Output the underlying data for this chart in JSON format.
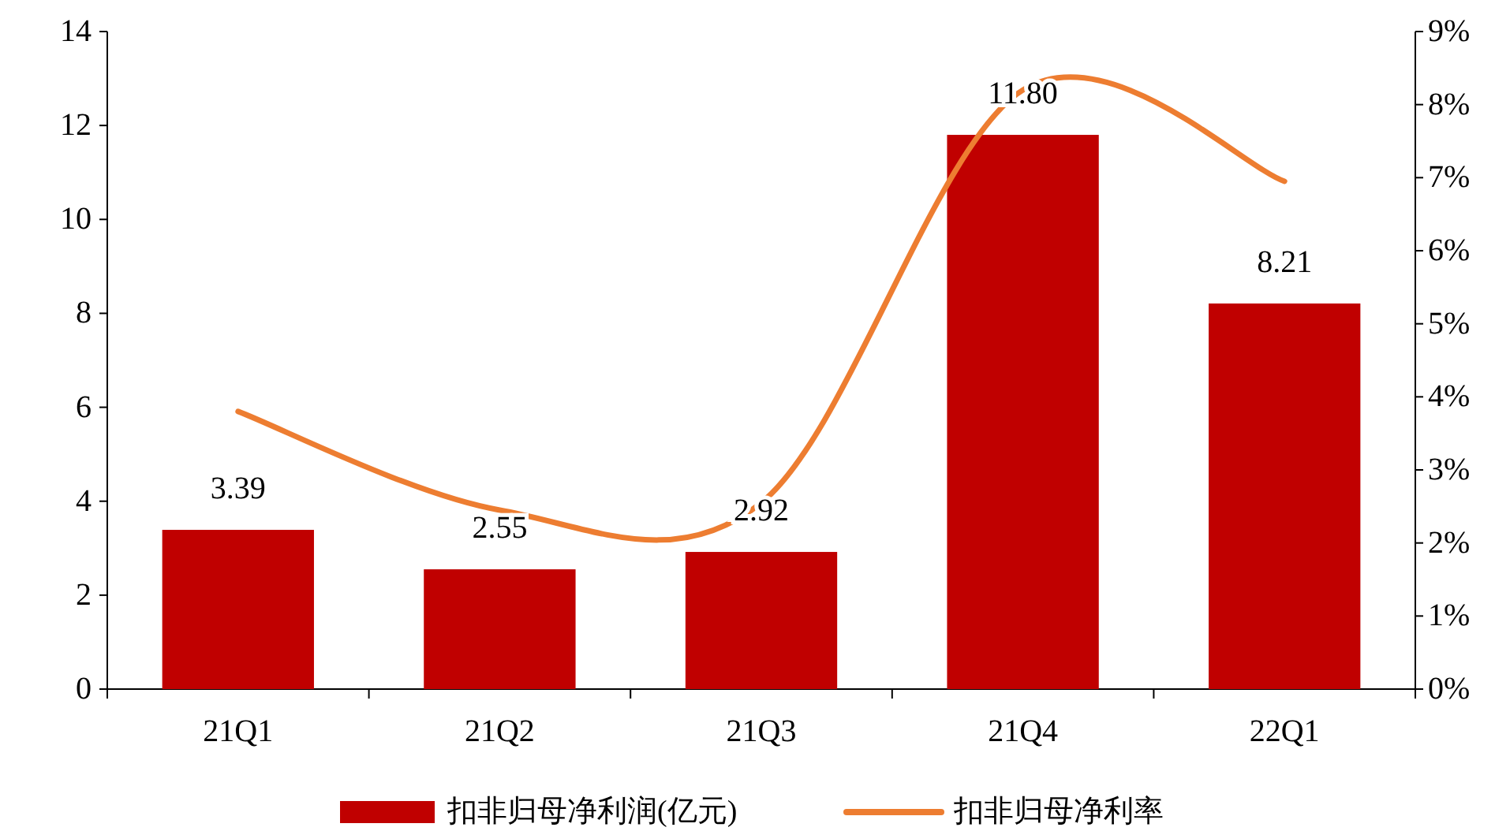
{
  "chart_data": {
    "type": "bar",
    "categories": [
      "21Q1",
      "21Q2",
      "21Q3",
      "21Q4",
      "22Q1"
    ],
    "series": [
      {
        "name": "扣非归母净利润(亿元)",
        "color": "#c00000",
        "values": [
          3.39,
          2.55,
          2.92,
          11.8,
          8.21
        ],
        "value_labels": [
          "3.39",
          "2.55",
          "2.92",
          "11.80",
          "8.21"
        ]
      },
      {
        "name": "扣非归母净利率",
        "type": "line",
        "axis": "y2",
        "color": "#ed7d31",
        "values": [
          3.8,
          2.45,
          2.55,
          8.2,
          6.95
        ]
      }
    ],
    "ylim": [
      0,
      14
    ],
    "yticks": [
      0,
      2,
      4,
      6,
      8,
      10,
      12,
      14
    ],
    "y2lim": [
      0,
      9
    ],
    "y2ticks": [
      {
        "value": 0,
        "label": "0%"
      },
      {
        "value": 1,
        "label": "1%"
      },
      {
        "value": 2,
        "label": "2%"
      },
      {
        "value": 3,
        "label": "3%"
      },
      {
        "value": 4,
        "label": "4%"
      },
      {
        "value": 5,
        "label": "5%"
      },
      {
        "value": 6,
        "label": "6%"
      },
      {
        "value": 7,
        "label": "7%"
      },
      {
        "value": 8,
        "label": "8%"
      },
      {
        "value": 9,
        "label": "9%"
      }
    ],
    "grid": false,
    "legend": "bottom",
    "marker": "none",
    "line_style": "solid"
  }
}
